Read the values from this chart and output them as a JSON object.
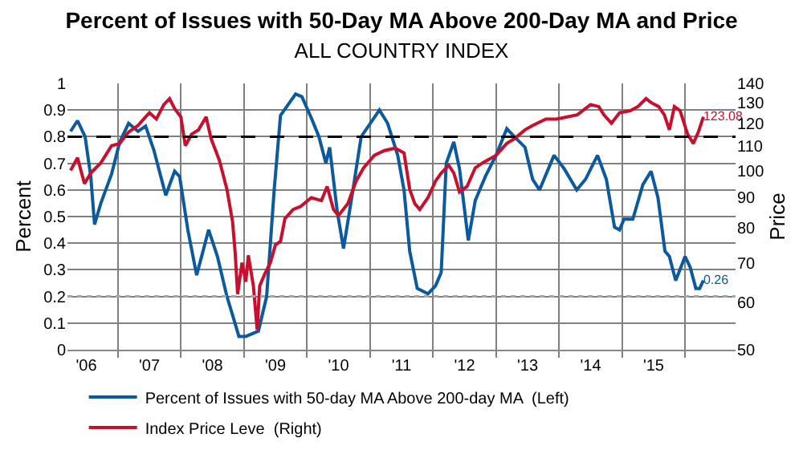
{
  "chart_data": {
    "type": "line",
    "title": "Percent of Issues with 50-Day MA Above 200-Day MA and Price",
    "subtitle": "ALL COUNTRY INDEX",
    "ylabel": "Percent",
    "y2label": "Price",
    "xlim": [
      2005.7,
      2016.3
    ],
    "xticks": [
      {
        "value": 2006,
        "label": "'06"
      },
      {
        "value": 2006.5,
        "label": null
      },
      {
        "value": 2007,
        "label": "'07"
      },
      {
        "value": 2007.5,
        "label": null
      },
      {
        "value": 2008,
        "label": "'08"
      },
      {
        "value": 2008.5,
        "label": null
      },
      {
        "value": 2009,
        "label": "'09"
      },
      {
        "value": 2009.5,
        "label": null
      },
      {
        "value": 2010,
        "label": "'10"
      },
      {
        "value": 2010.5,
        "label": null
      },
      {
        "value": 2011,
        "label": "'11"
      },
      {
        "value": 2011.5,
        "label": null
      },
      {
        "value": 2012,
        "label": "'12"
      },
      {
        "value": 2012.5,
        "label": null
      },
      {
        "value": 2013,
        "label": "'13"
      },
      {
        "value": 2013.5,
        "label": null
      },
      {
        "value": 2014,
        "label": "'14"
      },
      {
        "value": 2014.5,
        "label": null
      },
      {
        "value": 2015,
        "label": "'15"
      },
      {
        "value": 2015.5,
        "label": null
      }
    ],
    "ylim": [
      0,
      1
    ],
    "yticks": [
      0,
      0.1,
      0.2,
      0.3,
      0.4,
      0.5,
      0.6,
      0.7,
      0.8,
      0.9,
      1
    ],
    "y2lim": [
      50,
      140
    ],
    "y2ticks": [
      50,
      60,
      70,
      80,
      90,
      100,
      110,
      120,
      130,
      140
    ],
    "log": "y2",
    "grid": true,
    "legend": "bottom",
    "ref_lines": [
      {
        "axis": "y",
        "value": 0.8,
        "color": "#000000",
        "line_style": "dashed"
      },
      {
        "axis": "y",
        "value": 0.2,
        "color": "#a6a6a6",
        "line_style": "dotted"
      }
    ],
    "series": [
      {
        "name": "Percent of Issues with 50-day MA Above 200-day MA  (Left)",
        "color": "#0b5a9e",
        "x": [
          2005.75,
          2005.86,
          2005.98,
          2006.07,
          2006.13,
          2006.23,
          2006.4,
          2006.53,
          2006.67,
          2006.82,
          2006.94,
          2007.07,
          2007.26,
          2007.4,
          2007.48,
          2007.61,
          2007.75,
          2007.94,
          2008.08,
          2008.23,
          2008.32,
          2008.42,
          2008.53,
          2008.73,
          2008.86,
          2008.98,
          2009.08,
          2009.32,
          2009.42,
          2009.57,
          2009.69,
          2009.8,
          2009.86,
          2009.98,
          2010.08,
          2010.23,
          2010.36,
          2010.65,
          2010.78,
          2010.94,
          2011.04,
          2011.13,
          2011.25,
          2011.42,
          2011.54,
          2011.63,
          2011.71,
          2011.83,
          2011.92,
          2012.06,
          2012.17,
          2012.33,
          2012.5,
          2012.67,
          2012.79,
          2012.96,
          2013.08,
          2013.19,
          2013.42,
          2013.58,
          2013.78,
          2013.92,
          2014.11,
          2014.25,
          2014.38,
          2014.46,
          2014.53,
          2014.67,
          2014.83,
          2014.96,
          2015.07,
          2015.18,
          2015.25,
          2015.35,
          2015.5,
          2015.58,
          2015.67,
          2015.73,
          2015.79
        ],
        "values": [
          0.82,
          0.86,
          0.8,
          0.65,
          0.47,
          0.55,
          0.66,
          0.78,
          0.85,
          0.82,
          0.84,
          0.75,
          0.58,
          0.67,
          0.65,
          0.45,
          0.28,
          0.45,
          0.35,
          0.2,
          0.13,
          0.05,
          0.05,
          0.07,
          0.2,
          0.6,
          0.88,
          0.96,
          0.95,
          0.87,
          0.8,
          0.7,
          0.76,
          0.52,
          0.38,
          0.6,
          0.8,
          0.9,
          0.85,
          0.73,
          0.6,
          0.37,
          0.23,
          0.21,
          0.24,
          0.29,
          0.7,
          0.78,
          0.68,
          0.41,
          0.56,
          0.65,
          0.73,
          0.83,
          0.8,
          0.76,
          0.64,
          0.6,
          0.73,
          0.68,
          0.6,
          0.64,
          0.73,
          0.64,
          0.46,
          0.45,
          0.49,
          0.49,
          0.62,
          0.67,
          0.57,
          0.37,
          0.35,
          0.26,
          0.35,
          0.31,
          0.23,
          0.23,
          0.26
        ],
        "value_labels": [
          null,
          null,
          null,
          null,
          null,
          null,
          null,
          null,
          null,
          null,
          null,
          null,
          null,
          null,
          null,
          null,
          null,
          null,
          null,
          null,
          null,
          null,
          null,
          null,
          null,
          null,
          null,
          null,
          null,
          null,
          null,
          null,
          null,
          null,
          null,
          null,
          null,
          null,
          null,
          null,
          null,
          null,
          null,
          null,
          null,
          null,
          null,
          null,
          null,
          null,
          null,
          null,
          null,
          null,
          null,
          null,
          null,
          null,
          null,
          null,
          null,
          null,
          null,
          null,
          null,
          null,
          null,
          null,
          null,
          null,
          null,
          null,
          null,
          null,
          null,
          null,
          null,
          null,
          "0.26"
        ]
      },
      {
        "name": "Index Price Leve  (Right)",
        "color": "#c8102e",
        "axis": "y2",
        "x": [
          2005.75,
          2005.86,
          2005.97,
          2006.07,
          2006.23,
          2006.4,
          2006.53,
          2006.67,
          2006.82,
          2007.0,
          2007.11,
          2007.23,
          2007.32,
          2007.4,
          2007.5,
          2007.57,
          2007.67,
          2007.78,
          2007.9,
          2007.98,
          2008.11,
          2008.23,
          2008.32,
          2008.36,
          2008.4,
          2008.47,
          2008.53,
          2008.57,
          2008.65,
          2008.71,
          2008.75,
          2008.83,
          2008.92,
          2009.0,
          2009.08,
          2009.15,
          2009.28,
          2009.4,
          2009.57,
          2009.73,
          2009.82,
          2009.92,
          2010.0,
          2010.15,
          2010.28,
          2010.4,
          2010.57,
          2010.73,
          2010.9,
          2011.04,
          2011.13,
          2011.21,
          2011.29,
          2011.42,
          2011.54,
          2011.63,
          2011.75,
          2011.83,
          2011.92,
          2012.04,
          2012.17,
          2012.29,
          2012.5,
          2012.67,
          2012.79,
          2012.96,
          2013.08,
          2013.29,
          2013.46,
          2013.63,
          2013.79,
          2014.0,
          2014.13,
          2014.21,
          2014.33,
          2014.46,
          2014.63,
          2014.75,
          2014.88,
          2014.96,
          2015.08,
          2015.17,
          2015.25,
          2015.33,
          2015.42,
          2015.54,
          2015.63,
          2015.71,
          2015.79
        ],
        "values": [
          100,
          105,
          95,
          99,
          103,
          110,
          111,
          116,
          119,
          125,
          122,
          129,
          132,
          127,
          123,
          110,
          115,
          117,
          123,
          113,
          104,
          93,
          82,
          73,
          62,
          70,
          65,
          72,
          64,
          54,
          64,
          67,
          70,
          75,
          76,
          83,
          86,
          87,
          90,
          89,
          94,
          86,
          84,
          88,
          96,
          101,
          106,
          108,
          109,
          107,
          93,
          88,
          86,
          90,
          96,
          99,
          102,
          99,
          92,
          94,
          101,
          103,
          106,
          111,
          113,
          117,
          119,
          122,
          122,
          123,
          124,
          129,
          128,
          124,
          120,
          125,
          126,
          128,
          132,
          130,
          128,
          124,
          117,
          128,
          126,
          115,
          111,
          116,
          123.08
        ],
        "value_labels": [
          null,
          null,
          null,
          null,
          null,
          null,
          null,
          null,
          null,
          null,
          null,
          null,
          null,
          null,
          null,
          null,
          null,
          null,
          null,
          null,
          null,
          null,
          null,
          null,
          null,
          null,
          null,
          null,
          null,
          null,
          null,
          null,
          null,
          null,
          null,
          null,
          null,
          null,
          null,
          null,
          null,
          null,
          null,
          null,
          null,
          null,
          null,
          null,
          null,
          null,
          null,
          null,
          null,
          null,
          null,
          null,
          null,
          null,
          null,
          null,
          null,
          null,
          null,
          null,
          null,
          null,
          null,
          null,
          null,
          null,
          null,
          null,
          null,
          null,
          null,
          null,
          null,
          null,
          null,
          null,
          null,
          null,
          null,
          null,
          null,
          null,
          null,
          null,
          "123.08"
        ]
      }
    ]
  }
}
